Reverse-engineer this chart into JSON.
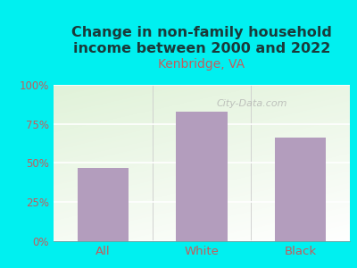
{
  "title": "Change in non-family household\nincome between 2000 and 2022",
  "subtitle": "Kenbridge, VA",
  "categories": [
    "All",
    "White",
    "Black"
  ],
  "values": [
    47,
    83,
    66
  ],
  "bar_color": "#b39dbd",
  "title_color": "#1a3a3a",
  "subtitle_color": "#c45c5c",
  "tick_color": "#c45c5c",
  "background_outer": "#00f0f0",
  "ylim": [
    0,
    100
  ],
  "yticks": [
    0,
    25,
    50,
    75,
    100
  ],
  "ytick_labels": [
    "0%",
    "25%",
    "50%",
    "75%",
    "100%"
  ],
  "watermark": "City-Data.com",
  "title_fontsize": 11.5,
  "subtitle_fontsize": 10
}
